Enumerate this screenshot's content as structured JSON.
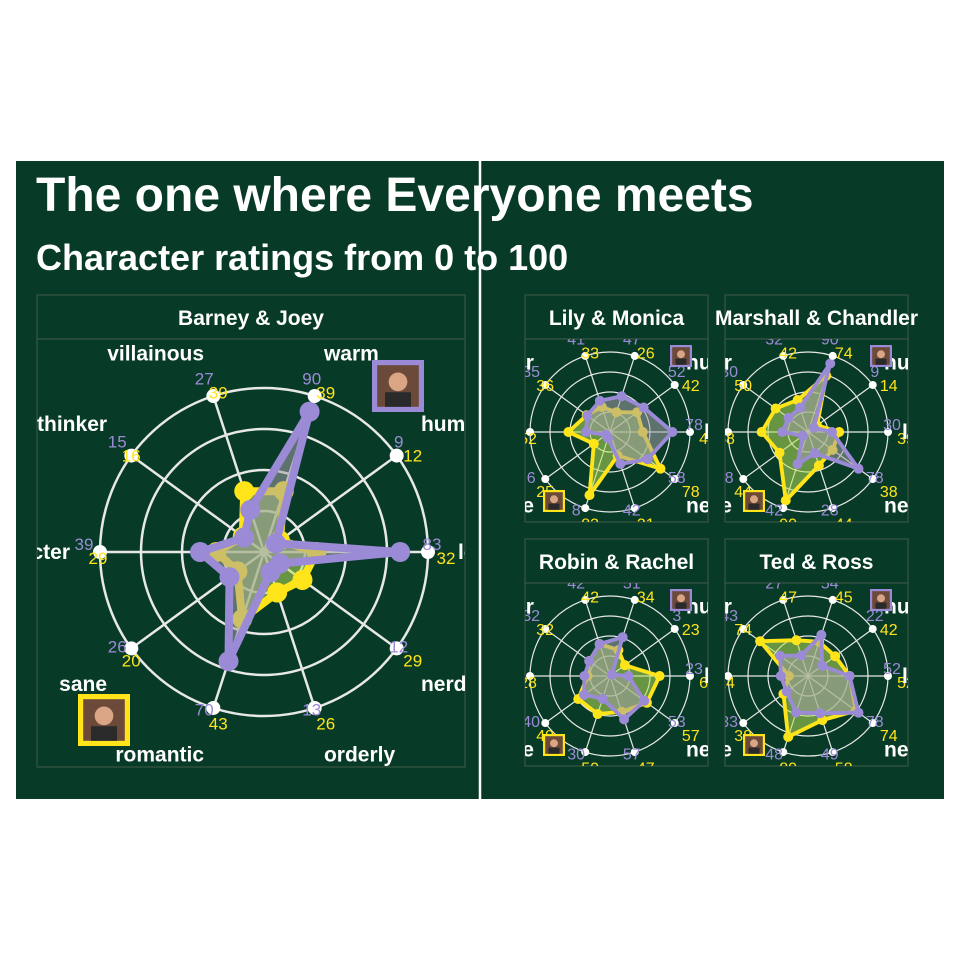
{
  "colors": {
    "background": "#083b27",
    "panel": "#083b27",
    "panel_border": "#2f4f3f",
    "grid": "#e8e8e8",
    "title": "#ffffff",
    "himym": "#ffe41a",
    "friends": "#9b8bd6",
    "himym_fill": "#b7e05a",
    "friends_fill": "#a4a0a6",
    "divider": "#ffffff"
  },
  "title": "The one where Everyone meets",
  "subtitle": "Character ratings from 0 to 100",
  "chart_data": {
    "type": "radar",
    "rlim": [
      0,
      100
    ],
    "grid": true,
    "axes": [
      "warm",
      "humorless",
      "low IQ",
      "nerd",
      "orderly",
      "romantic",
      "sane",
      "side character",
      "thinker",
      "villainous"
    ],
    "panels": [
      {
        "title": "Barney & Joey",
        "himym": {
          "icon": "barney-portrait-icon",
          "values": [
            39,
            12,
            32,
            29,
            26,
            43,
            20,
            29,
            16,
            39
          ]
        },
        "friends": {
          "icon": "joey-portrait-icon",
          "values": [
            90,
            9,
            83,
            12,
            13,
            70,
            26,
            39,
            15,
            27
          ]
        }
      },
      {
        "title": "Lily & Monica",
        "himym": {
          "icon": "lily-portrait-icon",
          "values": [
            26,
            42,
            41,
            78,
            31,
            83,
            25,
            52,
            36,
            33
          ]
        },
        "friends": {
          "icon": "monica-portrait-icon",
          "values": [
            47,
            52,
            78,
            58,
            42,
            8,
            6,
            30,
            35,
            41
          ]
        }
      },
      {
        "title": "Marshall & Chandler",
        "himym": {
          "icon": "marshall-portrait-icon",
          "values": [
            74,
            14,
            39,
            38,
            44,
            90,
            44,
            58,
            50,
            42
          ]
        },
        "friends": {
          "icon": "chandler-portrait-icon",
          "values": [
            90,
            9,
            30,
            78,
            28,
            42,
            8,
            32,
            30,
            32
          ]
        }
      },
      {
        "title": "Robin & Rachel",
        "himym": {
          "icon": "robin-portrait-icon",
          "values": [
            34,
            23,
            62,
            57,
            47,
            50,
            49,
            28,
            32,
            42
          ]
        },
        "friends": {
          "icon": "rachel-portrait-icon",
          "values": [
            51,
            3,
            23,
            53,
            57,
            30,
            40,
            32,
            32,
            42
          ]
        }
      },
      {
        "title": "Ted & Ross",
        "himym": {
          "icon": "ted-portrait-icon",
          "values": [
            45,
            42,
            52,
            74,
            58,
            80,
            38,
            24,
            74,
            47
          ]
        },
        "friends": {
          "icon": "ross-portrait-icon",
          "values": [
            54,
            22,
            52,
            78,
            49,
            48,
            33,
            34,
            43,
            27
          ]
        }
      }
    ]
  }
}
